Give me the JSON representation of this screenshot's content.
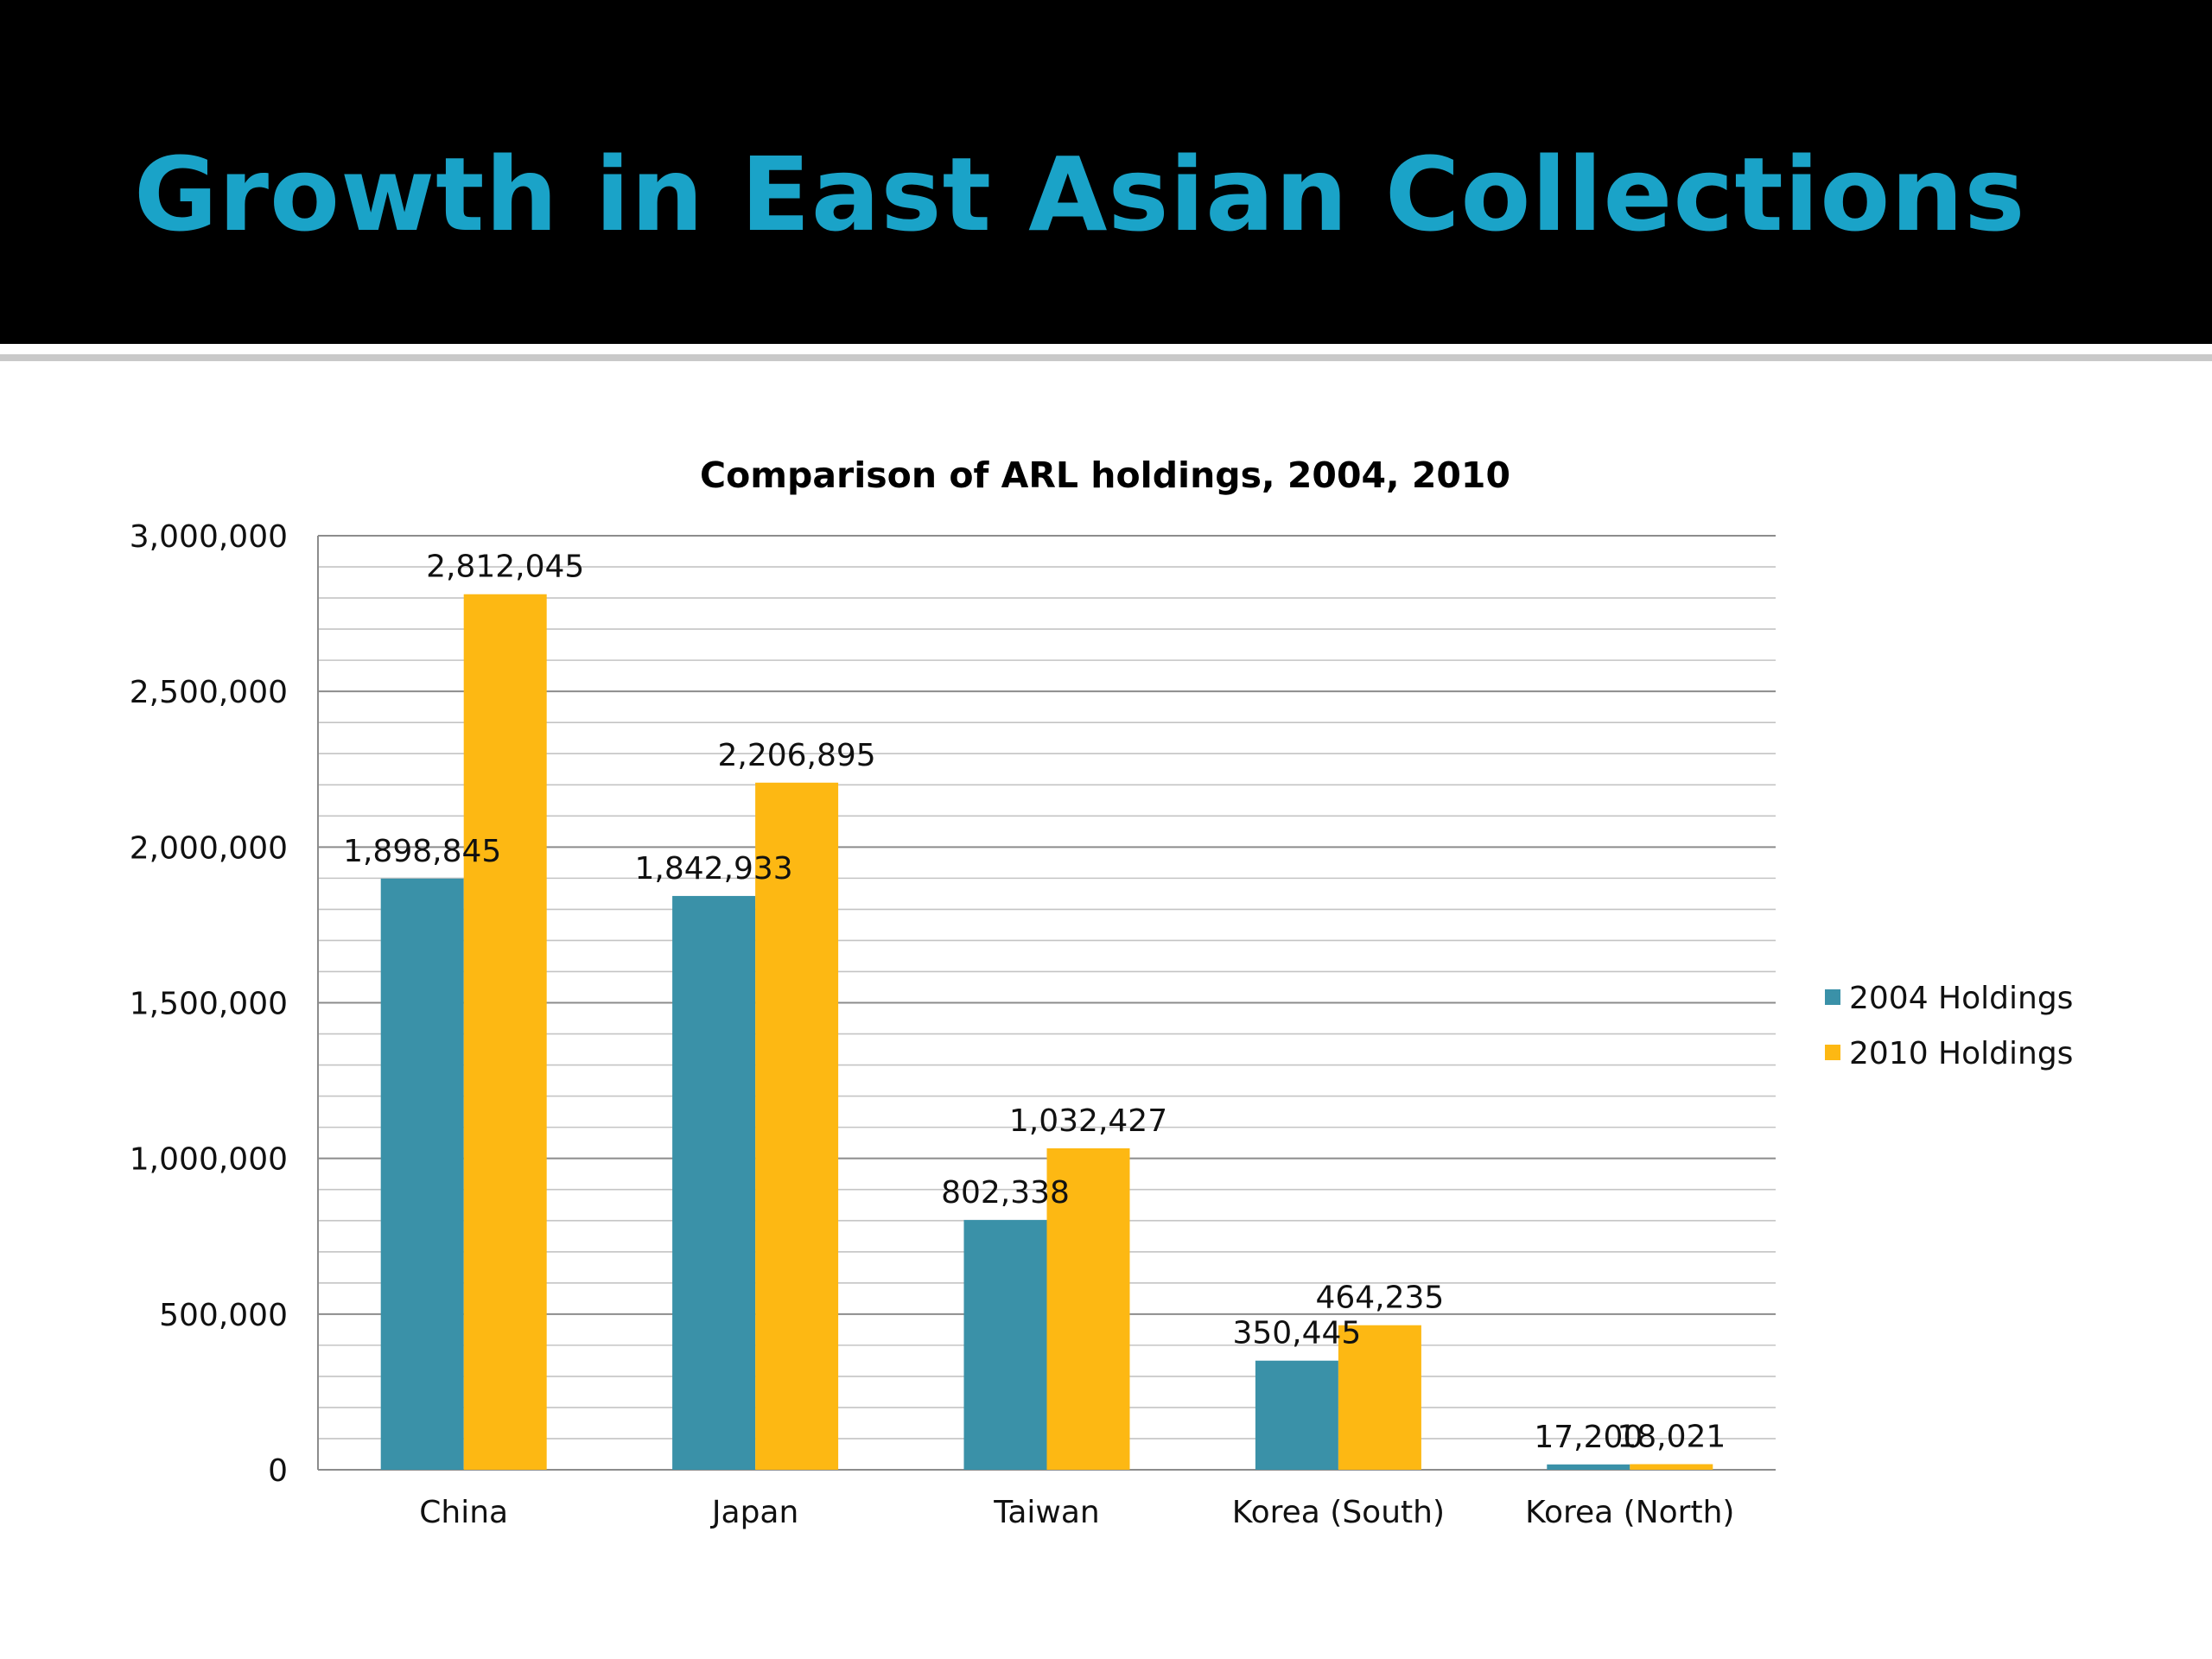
{
  "slide": {
    "title": "Growth in East Asian Collections"
  },
  "chart_data": {
    "type": "bar",
    "title": "Comparison of ARL holdings, 2004, 2010",
    "xlabel": "",
    "ylabel": "",
    "categories": [
      "China",
      "Japan",
      "Taiwan",
      "Korea (South)",
      "Korea (North)"
    ],
    "series": [
      {
        "name": "2004 Holdings",
        "color": "#3a91a8",
        "values": [
          1898845,
          1842933,
          802338,
          350445,
          17200
        ],
        "labels": [
          "1,898,845",
          "1,842,933",
          "802,338",
          "350,445",
          "17,200"
        ]
      },
      {
        "name": "2010 Holdings",
        "color": "#fdb813",
        "values": [
          2812045,
          2206895,
          1032427,
          464235,
          18021
        ],
        "labels": [
          "2,812,045",
          "2,206,895",
          "1,032,427",
          "464,235",
          "18,021"
        ]
      }
    ],
    "ylim": [
      0,
      3000000
    ],
    "yticks": [
      0,
      500000,
      1000000,
      1500000,
      2000000,
      2500000,
      3000000
    ],
    "ytick_labels": [
      "0",
      "500,000",
      "1,000,000",
      "1,500,000",
      "2,000,000",
      "2,500,000",
      "3,000,000"
    ],
    "grid": true,
    "legend": "right"
  }
}
